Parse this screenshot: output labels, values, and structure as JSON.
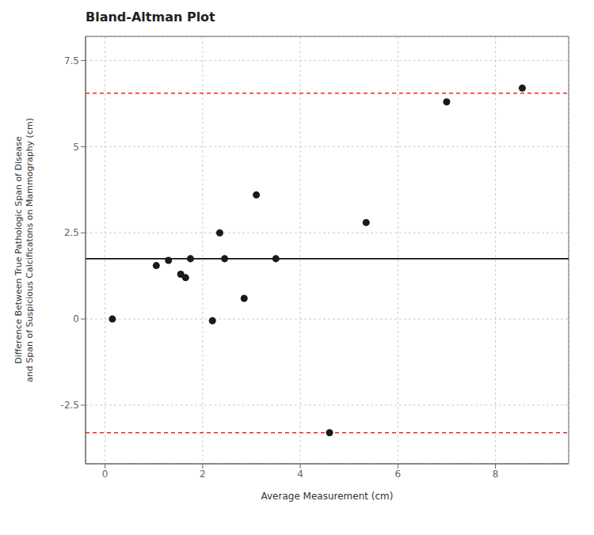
{
  "chart_data": {
    "type": "scatter",
    "title": "Bland-Altman Plot",
    "xlabel": "Average Measurement (cm)",
    "ylabel": "Difference Between True Pathologic Span of Disease\nand Span of Suspicious Calcificatons on Mammography (cm)",
    "x": [
      0.15,
      1.05,
      1.3,
      1.55,
      1.65,
      1.75,
      2.2,
      2.35,
      2.45,
      2.85,
      3.1,
      3.5,
      4.6,
      5.35,
      7.0,
      8.55
    ],
    "values": [
      0.0,
      1.55,
      1.7,
      1.3,
      1.2,
      1.75,
      -0.05,
      2.5,
      1.75,
      0.6,
      3.6,
      1.75,
      -3.3,
      2.8,
      6.3,
      6.7
    ],
    "color": "#1a1a1a",
    "hlines": [
      {
        "y": 1.75,
        "color": "#111111",
        "line_style": "solid"
      },
      {
        "y": 6.55,
        "color": "#ff2020",
        "line_style": "dashed"
      },
      {
        "y": -3.3,
        "color": "#ff2020",
        "line_style": "dashed"
      }
    ],
    "xlim": [
      -0.4,
      9.5
    ],
    "ylim": [
      -4.2,
      8.2
    ],
    "xticks": [
      0,
      2,
      4,
      6,
      8
    ],
    "yticks": [
      -2.5,
      0.0,
      2.5,
      5.0,
      7.5
    ],
    "grid": true
  }
}
